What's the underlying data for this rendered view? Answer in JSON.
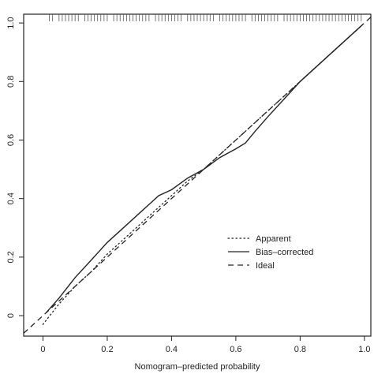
{
  "chart_data": {
    "type": "line",
    "title": "",
    "xlabel": "Nomogram–predicted probability",
    "ylabel": "",
    "xlim": [
      -0.06,
      1.02
    ],
    "ylim": [
      -0.07,
      1.03
    ],
    "xticks": [
      0,
      0.2,
      0.4,
      0.6,
      0.8,
      1.0
    ],
    "xtick_labels": [
      "0",
      "0.2",
      "0.4",
      "0.6",
      "0.8",
      "1.0"
    ],
    "yticks": [
      0,
      0.2,
      0.4,
      0.6,
      0.8,
      1.0
    ],
    "ytick_labels": [
      "0",
      "0.2",
      "0.4",
      "0.6",
      "0.8",
      "1.0"
    ],
    "grid": false,
    "legend_position": "lower-right",
    "rug_position": "top",
    "rug_x": [
      0.02,
      0.03,
      0.05,
      0.06,
      0.07,
      0.08,
      0.09,
      0.1,
      0.11,
      0.13,
      0.14,
      0.15,
      0.16,
      0.17,
      0.18,
      0.19,
      0.2,
      0.22,
      0.23,
      0.24,
      0.25,
      0.26,
      0.27,
      0.28,
      0.29,
      0.3,
      0.31,
      0.32,
      0.33,
      0.35,
      0.36,
      0.37,
      0.38,
      0.39,
      0.4,
      0.41,
      0.42,
      0.43,
      0.45,
      0.46,
      0.47,
      0.48,
      0.49,
      0.5,
      0.51,
      0.52,
      0.53,
      0.55,
      0.56,
      0.57,
      0.58,
      0.59,
      0.6,
      0.61,
      0.62,
      0.63,
      0.65,
      0.66,
      0.67,
      0.68,
      0.69,
      0.7,
      0.71,
      0.72,
      0.73,
      0.75,
      0.76,
      0.77,
      0.78,
      0.79,
      0.8,
      0.81,
      0.82,
      0.83,
      0.84,
      0.85,
      0.86,
      0.87,
      0.88,
      0.89,
      0.9,
      0.91,
      0.92,
      0.93,
      0.94,
      0.95,
      0.96,
      0.97,
      0.98,
      0.99
    ],
    "series": [
      {
        "name": "Apparent",
        "style": "dotted",
        "x": [
          0.0,
          0.05,
          0.1,
          0.15,
          0.2,
          0.25,
          0.3,
          0.35,
          0.4,
          0.45,
          0.5,
          0.55,
          0.6,
          0.65,
          0.7,
          0.75,
          0.8,
          0.85,
          0.9,
          0.95,
          1.0
        ],
        "y": [
          -0.03,
          0.04,
          0.1,
          0.15,
          0.21,
          0.26,
          0.31,
          0.36,
          0.41,
          0.46,
          0.5,
          0.55,
          0.6,
          0.65,
          0.7,
          0.75,
          0.8,
          0.85,
          0.9,
          0.95,
          1.0
        ]
      },
      {
        "name": "Bias–corrected",
        "style": "solid",
        "x": [
          0.01,
          0.05,
          0.1,
          0.15,
          0.2,
          0.25,
          0.3,
          0.33,
          0.36,
          0.4,
          0.45,
          0.5,
          0.55,
          0.6,
          0.63,
          0.66,
          0.7,
          0.75,
          0.8,
          0.85,
          0.9,
          0.95,
          0.99
        ],
        "y": [
          0.01,
          0.06,
          0.13,
          0.19,
          0.25,
          0.3,
          0.35,
          0.38,
          0.41,
          0.43,
          0.47,
          0.5,
          0.54,
          0.57,
          0.59,
          0.63,
          0.68,
          0.74,
          0.8,
          0.85,
          0.9,
          0.95,
          0.99
        ]
      },
      {
        "name": "Ideal",
        "style": "dashed",
        "x": [
          -0.06,
          1.02
        ],
        "y": [
          -0.06,
          1.02
        ]
      }
    ]
  }
}
